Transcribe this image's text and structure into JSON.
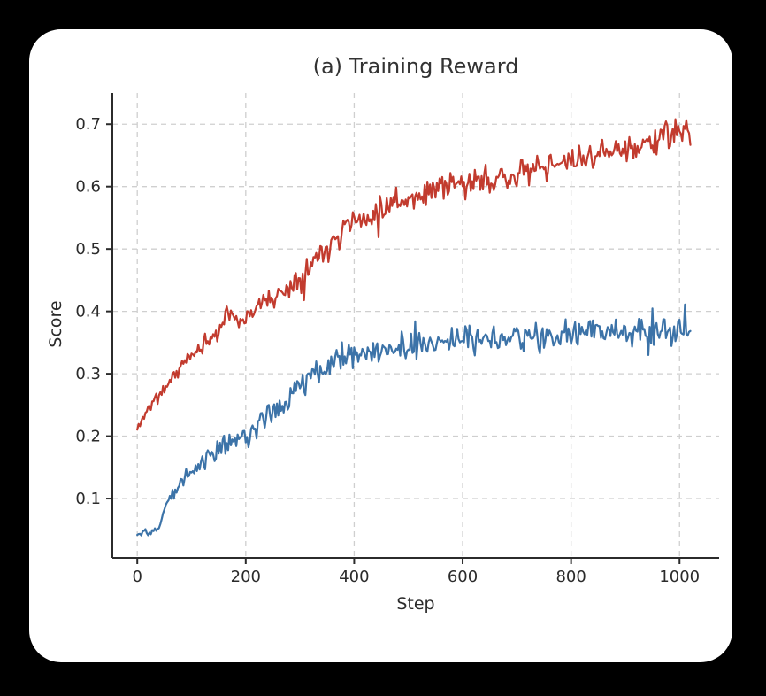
{
  "page": {
    "background_color": "#000000",
    "card_background_color": "#ffffff"
  },
  "chart_data": {
    "type": "line",
    "title": "(a) Training Reward",
    "xlabel": "Step",
    "ylabel": "Score",
    "xlim": [
      -46,
      1073
    ],
    "ylim": [
      0.005,
      0.75
    ],
    "x_ticks": [
      0,
      200,
      400,
      600,
      800,
      1000
    ],
    "y_ticks": [
      0.1,
      0.2,
      0.3,
      0.4,
      0.5,
      0.6,
      0.7
    ],
    "grid": {
      "visible": true,
      "style": "dashed",
      "color": "#cfcfcf"
    },
    "legend_position": "none",
    "axis_text_color": "#2b2b2b",
    "spine_color": "#2b2b2b",
    "step_min": 0,
    "step_max": 1020,
    "series": [
      {
        "id": "red-series",
        "color": "#c23b2e",
        "line_width": 2.2,
        "start_value": 0.21,
        "end_value": 0.69,
        "trend": [
          [
            0,
            0.21
          ],
          [
            15,
            0.24
          ],
          [
            30,
            0.255
          ],
          [
            50,
            0.275
          ],
          [
            75,
            0.305
          ],
          [
            100,
            0.33
          ],
          [
            125,
            0.35
          ],
          [
            150,
            0.365
          ],
          [
            165,
            0.4
          ],
          [
            180,
            0.385
          ],
          [
            200,
            0.39
          ],
          [
            220,
            0.405
          ],
          [
            240,
            0.415
          ],
          [
            260,
            0.425
          ],
          [
            280,
            0.44
          ],
          [
            300,
            0.455
          ],
          [
            320,
            0.475
          ],
          [
            340,
            0.495
          ],
          [
            360,
            0.515
          ],
          [
            380,
            0.535
          ],
          [
            395,
            0.55
          ],
          [
            415,
            0.545
          ],
          [
            435,
            0.555
          ],
          [
            455,
            0.57
          ],
          [
            475,
            0.58
          ],
          [
            500,
            0.578
          ],
          [
            530,
            0.59
          ],
          [
            560,
            0.6
          ],
          [
            600,
            0.6
          ],
          [
            640,
            0.61
          ],
          [
            680,
            0.615
          ],
          [
            720,
            0.625
          ],
          [
            760,
            0.63
          ],
          [
            800,
            0.64
          ],
          [
            840,
            0.65
          ],
          [
            880,
            0.655
          ],
          [
            920,
            0.665
          ],
          [
            960,
            0.675
          ],
          [
            1000,
            0.69
          ],
          [
            1020,
            0.685
          ]
        ],
        "noise": {
          "seed": 11,
          "amp": [
            [
              0,
              0.006
            ],
            [
              100,
              0.009
            ],
            [
              250,
              0.011
            ],
            [
              400,
              0.015
            ],
            [
              700,
              0.015
            ],
            [
              1020,
              0.017
            ]
          ],
          "spike_chance": 0.05,
          "spike_scale": 2.2
        }
      },
      {
        "id": "blue-series",
        "color": "#3c73a8",
        "line_width": 2.2,
        "start_value": 0.045,
        "end_value": 0.375,
        "trend": [
          [
            0,
            0.045
          ],
          [
            20,
            0.046
          ],
          [
            36,
            0.05
          ],
          [
            58,
            0.1
          ],
          [
            75,
            0.12
          ],
          [
            94,
            0.14
          ],
          [
            120,
            0.158
          ],
          [
            148,
            0.175
          ],
          [
            175,
            0.19
          ],
          [
            200,
            0.205
          ],
          [
            230,
            0.225
          ],
          [
            260,
            0.245
          ],
          [
            290,
            0.27
          ],
          [
            310,
            0.285
          ],
          [
            330,
            0.3
          ],
          [
            350,
            0.315
          ],
          [
            370,
            0.325
          ],
          [
            400,
            0.33
          ],
          [
            430,
            0.335
          ],
          [
            460,
            0.34
          ],
          [
            500,
            0.345
          ],
          [
            550,
            0.35
          ],
          [
            600,
            0.355
          ],
          [
            650,
            0.355
          ],
          [
            700,
            0.36
          ],
          [
            750,
            0.36
          ],
          [
            800,
            0.365
          ],
          [
            850,
            0.365
          ],
          [
            900,
            0.365
          ],
          [
            950,
            0.37
          ],
          [
            1000,
            0.37
          ],
          [
            1020,
            0.375
          ]
        ],
        "noise": {
          "seed": 29,
          "amp": [
            [
              0,
              0.003
            ],
            [
              40,
              0.006
            ],
            [
              100,
              0.01
            ],
            [
              200,
              0.013
            ],
            [
              300,
              0.014
            ],
            [
              500,
              0.016
            ],
            [
              1020,
              0.017
            ]
          ],
          "spike_chance": 0.06,
          "spike_scale": 2.3
        }
      }
    ]
  }
}
